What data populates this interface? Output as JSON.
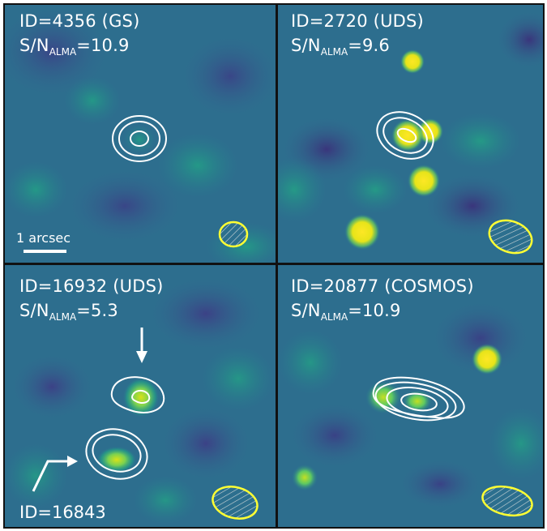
{
  "panels": [
    {
      "id_label": "ID=4356 (GS)",
      "sn_prefix": "S/N",
      "sn_sub": "ALMA",
      "sn_value": "=10.9"
    },
    {
      "id_label": "ID=2720 (UDS)",
      "sn_prefix": "S/N",
      "sn_sub": "ALMA",
      "sn_value": "=9.6"
    },
    {
      "id_label": "ID=16932 (UDS)",
      "sn_prefix": "S/N",
      "sn_sub": "ALMA",
      "sn_value": "=5.3"
    },
    {
      "id_label": "ID=20877 (COSMOS)",
      "sn_prefix": "S/N",
      "sn_sub": "ALMA",
      "sn_value": "=10.9"
    }
  ],
  "scale_bar_label": "1 arcsec",
  "companion_label": "ID=16843",
  "colors": {
    "background_map": "#2c6f8e",
    "source": "#fde725",
    "contour": "#ffffff",
    "beam": "#ffff33",
    "frame": "#111111"
  },
  "icons": {
    "beam": "hatched-ellipse",
    "pointer": "down-arrow",
    "companion_pointer": "bent-arrow"
  }
}
